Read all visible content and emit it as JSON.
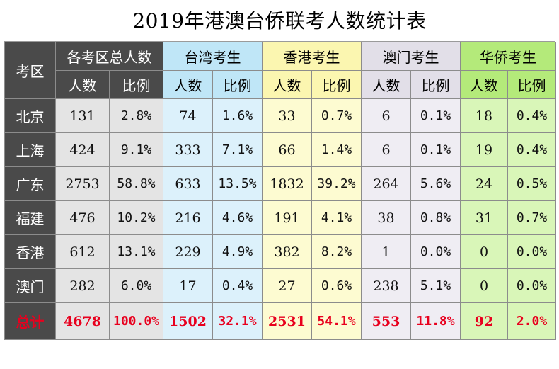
{
  "title": "2019年港澳台侨联考人数统计表",
  "corner_label": "考区",
  "groups": [
    {
      "key": "all",
      "label": "各考区总人数",
      "count_label": "人数",
      "ratio_label": "比例"
    },
    {
      "key": "tw",
      "label": "台湾考生",
      "count_label": "人数",
      "ratio_label": "比例"
    },
    {
      "key": "hk",
      "label": "香港考生",
      "count_label": "人数",
      "ratio_label": "比例"
    },
    {
      "key": "mo",
      "label": "澳门考生",
      "count_label": "人数",
      "ratio_label": "比例"
    },
    {
      "key": "oc",
      "label": "华侨考生",
      "count_label": "人数",
      "ratio_label": "比例"
    }
  ],
  "colors": {
    "row_label_bg": "#4a4a4a",
    "total_text": "#e8001e",
    "all_header": "#4a4a4a",
    "tw_header": "#bfe6f7",
    "hk_header": "#fbf6b0",
    "mo_header": "#e2dfe8",
    "oc_header": "#b4ea7a"
  },
  "rows": [
    {
      "region": "北京",
      "all": [
        "131",
        "2.8%"
      ],
      "tw": [
        "74",
        "1.6%"
      ],
      "hk": [
        "33",
        "0.7%"
      ],
      "mo": [
        "6",
        "0.1%"
      ],
      "oc": [
        "18",
        "0.4%"
      ]
    },
    {
      "region": "上海",
      "all": [
        "424",
        "9.1%"
      ],
      "tw": [
        "333",
        "7.1%"
      ],
      "hk": [
        "66",
        "1.4%"
      ],
      "mo": [
        "6",
        "0.1%"
      ],
      "oc": [
        "19",
        "0.4%"
      ]
    },
    {
      "region": "广东",
      "all": [
        "2753",
        "58.8%"
      ],
      "tw": [
        "633",
        "13.5%"
      ],
      "hk": [
        "1832",
        "39.2%"
      ],
      "mo": [
        "264",
        "5.6%"
      ],
      "oc": [
        "24",
        "0.5%"
      ]
    },
    {
      "region": "福建",
      "all": [
        "476",
        "10.2%"
      ],
      "tw": [
        "216",
        "4.6%"
      ],
      "hk": [
        "191",
        "4.1%"
      ],
      "mo": [
        "38",
        "0.8%"
      ],
      "oc": [
        "31",
        "0.7%"
      ]
    },
    {
      "region": "香港",
      "all": [
        "612",
        "13.1%"
      ],
      "tw": [
        "229",
        "4.9%"
      ],
      "hk": [
        "382",
        "8.2%"
      ],
      "mo": [
        "1",
        "0.0%"
      ],
      "oc": [
        "0",
        "0.0%"
      ]
    },
    {
      "region": "澳门",
      "all": [
        "282",
        "6.0%"
      ],
      "tw": [
        "17",
        "0.4%"
      ],
      "hk": [
        "27",
        "0.6%"
      ],
      "mo": [
        "238",
        "5.1%"
      ],
      "oc": [
        "0",
        "0.0%"
      ]
    }
  ],
  "total": {
    "region": "总计",
    "all": [
      "4678",
      "100.0%"
    ],
    "tw": [
      "1502",
      "32.1%"
    ],
    "hk": [
      "2531",
      "54.1%"
    ],
    "mo": [
      "553",
      "11.8%"
    ],
    "oc": [
      "92",
      "2.0%"
    ]
  }
}
